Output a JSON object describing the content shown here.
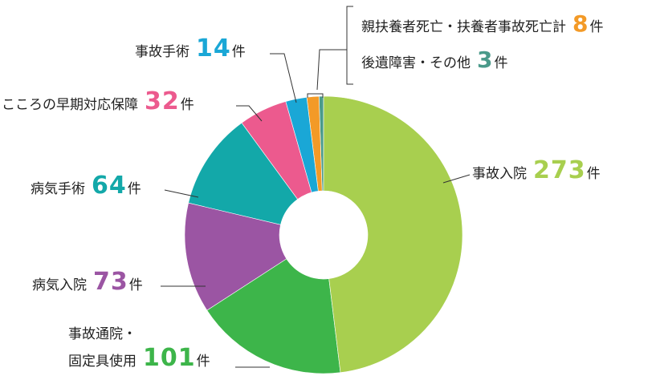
{
  "chart_data": {
    "type": "pie",
    "categories": [
      "事故入院",
      "事故通院・\n固定具使用",
      "病気入院",
      "病気手術",
      "こころの早期対応保障",
      "事故手術",
      "親扶養者死亡・扶養者事故死亡計",
      "後遺障害・その他"
    ],
    "values": [
      273,
      101,
      73,
      64,
      32,
      14,
      8,
      3
    ],
    "unit": "件",
    "colors": [
      "#a8cf4f",
      "#3db54a",
      "#9b55a3",
      "#13a8a9",
      "#ec5a8e",
      "#1aa7d6",
      "#f39a27",
      "#4a9a8a"
    ]
  }
}
